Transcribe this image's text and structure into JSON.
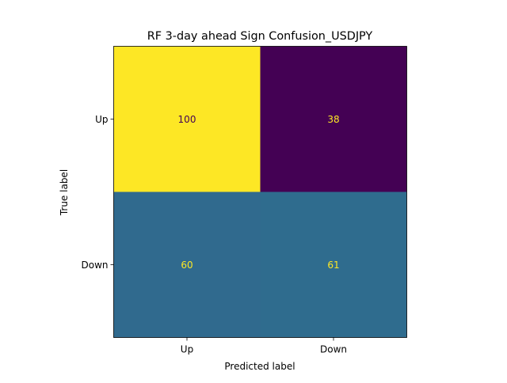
{
  "chart_data": {
    "type": "heatmap",
    "title": "RF 3-day ahead Sign Confusion_USDJPY",
    "xlabel": "Predicted label",
    "ylabel": "True label",
    "x_categories": [
      "Up",
      "Down"
    ],
    "y_categories": [
      "Up",
      "Down"
    ],
    "values": [
      [
        100,
        38
      ],
      [
        60,
        61
      ]
    ],
    "value_range": [
      38,
      100
    ],
    "colormap": "viridis",
    "colorbar": false,
    "grid": false
  },
  "colors": {
    "cells": [
      [
        "#fde725",
        "#440154"
      ],
      [
        "#306a8e",
        "#2f6c8e"
      ]
    ],
    "text_on_light": "#440154",
    "text_on_dark": "#fde725",
    "axis": "#000000"
  }
}
